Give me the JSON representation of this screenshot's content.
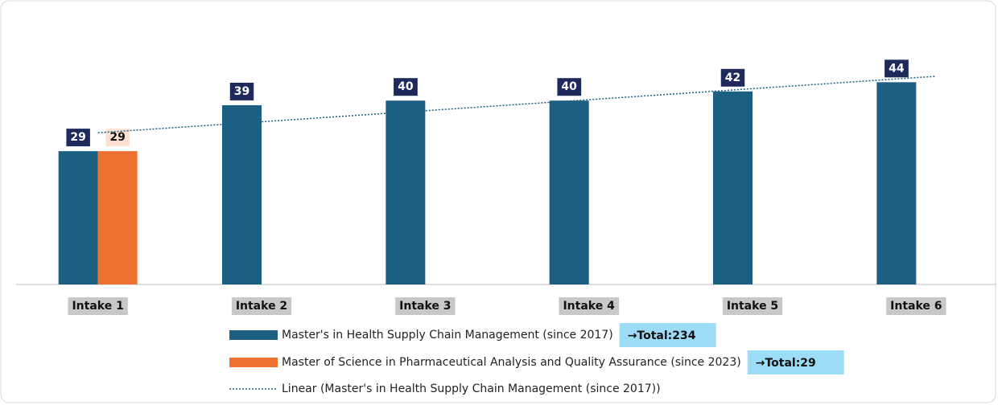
{
  "chart_data": {
    "type": "bar",
    "categories": [
      "Intake 1",
      "Intake 2",
      "Intake 3",
      "Intake 4",
      "Intake 5",
      "Intake 6"
    ],
    "series": [
      {
        "name": "Master's in Health Supply Chain Management (since 2017)",
        "color": "#1b5f82",
        "values": [
          29,
          39,
          40,
          40,
          42,
          44
        ],
        "total": "→Total:234"
      },
      {
        "name": "Master of Science in Pharmaceutical Analysis and Quality Assurance (since 2023)",
        "color": "#ed7232",
        "values": [
          29,
          null,
          null,
          null,
          null,
          null
        ],
        "total": "→Total:29"
      }
    ],
    "trendline": {
      "name": "Linear (Master's in Health Supply Chain Management (since 2017))",
      "color": "#1b5f82"
    }
  }
}
